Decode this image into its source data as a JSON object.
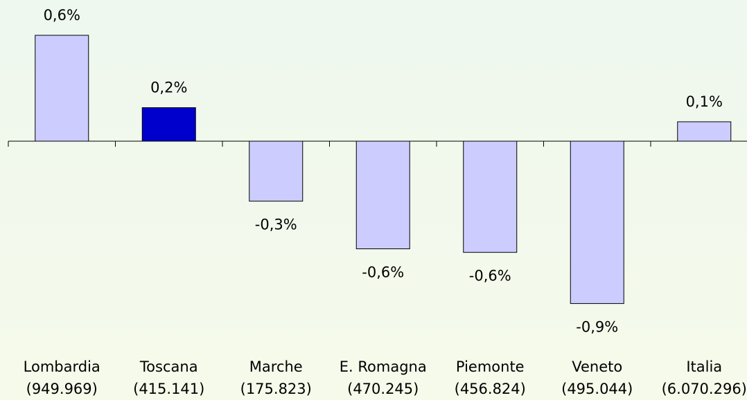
{
  "chart_data": {
    "type": "bar",
    "categories": [
      [
        "Lombardia",
        "(949.969)"
      ],
      [
        "Toscana",
        "(415.141)"
      ],
      [
        "Marche",
        "(175.823)"
      ],
      [
        "E. Romagna",
        "(470.245)"
      ],
      [
        "Piemonte",
        "(456.824)"
      ],
      [
        "Veneto",
        "(495.044)"
      ],
      [
        "Italia",
        "(6.070.296)"
      ]
    ],
    "values": [
      0.6,
      0.19,
      -0.34,
      -0.61,
      -0.63,
      -0.92,
      0.11
    ],
    "value_labels": [
      "0,6%",
      "0,2%",
      "-0,3%",
      "-0,6%",
      "-0,6%",
      "-0,9%",
      "0,1%"
    ],
    "colors": [
      "#ccccff",
      "#0000cc",
      "#ccccff",
      "#ccccff",
      "#ccccff",
      "#ccccff",
      "#ccccff"
    ],
    "ylim": [
      -1.1,
      0.8
    ]
  }
}
